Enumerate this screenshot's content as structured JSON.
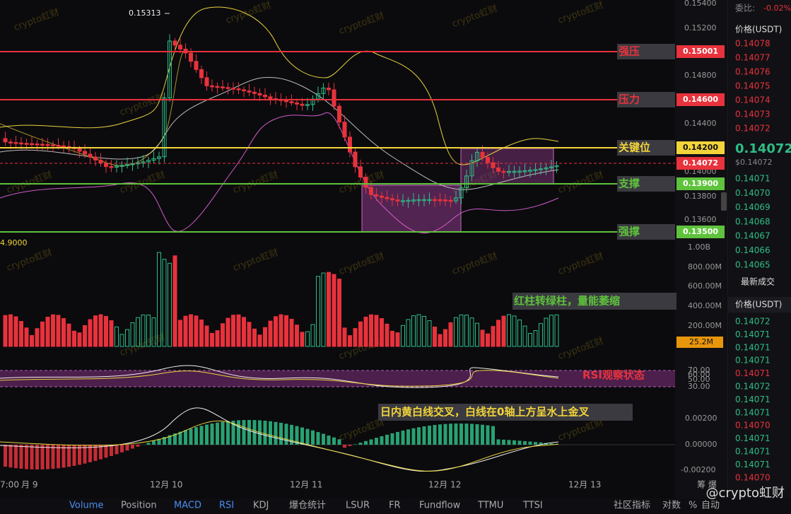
{
  "price_axis": [
    "0.15400",
    "0.15200",
    "0.14800",
    "0.14400",
    "0.14000",
    "0.13800",
    "0.13600"
  ],
  "levels": [
    {
      "name": "强压",
      "price": "0.15001",
      "color": "#e8323c"
    },
    {
      "name": "压力",
      "price": "0.14600",
      "color": "#e8323c"
    },
    {
      "name": "关键位",
      "price": "0.14200",
      "color": "#f2d43a"
    },
    {
      "name": "支撑",
      "price": "0.13900",
      "color": "#5fc23c"
    },
    {
      "name": "强撑",
      "price": "0.13500",
      "color": "#5fc23c"
    }
  ],
  "current_price": "0.14072",
  "high_label": "0.15313",
  "left_label": "4.9000",
  "volume_axis": [
    "1.00B",
    "800.00M",
    "600.00M",
    "400.00M",
    "200.00M"
  ],
  "volume_current": "25.2M",
  "rsi_axis": [
    "70.00",
    "60.00",
    "50.00",
    "30.00"
  ],
  "macd_axis": [
    "0.00200",
    "0.00000",
    "-0.00200"
  ],
  "x_axis": [
    "7:00",
    "月 9",
    "12月 10",
    "12月 11",
    "12月 12",
    "12月 13"
  ],
  "annotations": {
    "volume": "红柱转绿柱，量能萎缩",
    "rsi": "RSI观察状态",
    "macd": "日内黄白线交叉，白线在0轴上方呈水上金叉"
  },
  "order_book": {
    "ratio_label": "委比:",
    "ratio": "-0.02%",
    "header": "价格(USDT)",
    "asks": [
      "0.14078",
      "0.14077",
      "0.14076",
      "0.14075",
      "0.14074",
      "0.14073",
      "0.14072"
    ],
    "last": "0.14072",
    "last_usd": "$0.14072",
    "bids": [
      "0.14071",
      "0.14070",
      "0.14069",
      "0.14068",
      "0.14067",
      "0.14066",
      "0.14065"
    ],
    "trades_title": "最新成交",
    "trades_header": "价格(USDT)",
    "trades": [
      {
        "price": "0.14072",
        "color": "#2ebd85"
      },
      {
        "price": "0.14071",
        "color": "#2ebd85"
      },
      {
        "price": "0.14071",
        "color": "#2ebd85"
      },
      {
        "price": "0.14071",
        "color": "#2ebd85"
      },
      {
        "price": "0.14071",
        "color": "#e8323c"
      },
      {
        "price": "0.14072",
        "color": "#2ebd85"
      },
      {
        "price": "0.14071",
        "color": "#2ebd85"
      },
      {
        "price": "0.14071",
        "color": "#2ebd85"
      },
      {
        "price": "0.14070",
        "color": "#e8323c"
      },
      {
        "price": "0.14071",
        "color": "#2ebd85"
      },
      {
        "price": "0.14071",
        "color": "#2ebd85"
      },
      {
        "price": "0.14071",
        "color": "#2ebd85"
      },
      {
        "price": "0.14070",
        "color": "#e8323c"
      }
    ]
  },
  "tabs": [
    {
      "label": "Volume",
      "active": true
    },
    {
      "label": "Position",
      "active": false
    },
    {
      "label": "MACD",
      "active": true
    },
    {
      "label": "RSI",
      "active": true
    },
    {
      "label": "KDJ",
      "active": false
    },
    {
      "label": "爆仓统计",
      "active": false
    },
    {
      "label": "LSUR",
      "active": false
    },
    {
      "label": "FR",
      "active": false
    },
    {
      "label": "Fundflow",
      "active": false
    },
    {
      "label": "TTMU",
      "active": false
    },
    {
      "label": "TTSI",
      "active": false
    }
  ],
  "toolbar_right": [
    "社区指标",
    "对数",
    "%",
    "自动"
  ],
  "axis_corner": "筹  爆",
  "watermark": "crypto虹财",
  "brand": "@crypto虹财"
}
